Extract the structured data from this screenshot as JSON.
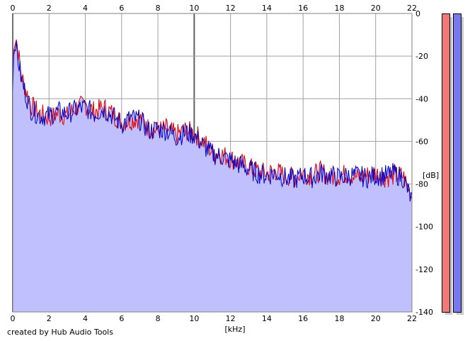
{
  "footer": {
    "credit": "created by Hub Audio Tools"
  },
  "meters": {
    "left_color": "#f07878",
    "right_color": "#7878f0"
  },
  "chart_data": {
    "type": "line",
    "title": "",
    "xlabel": "[kHz]",
    "ylabel": "[dB]",
    "xlim": [
      0,
      22
    ],
    "ylim": [
      -140,
      0
    ],
    "x_ticks": [
      "0",
      "2",
      "4",
      "6",
      "8",
      "10",
      "12",
      "14",
      "16",
      "18",
      "20",
      "22"
    ],
    "y_ticks": [
      "0",
      "-20",
      "-40",
      "-60",
      "-80",
      "-100",
      "-120",
      "-140"
    ],
    "grid": true,
    "fill_color": "#c0c0ff",
    "series": [
      {
        "color": "#e00000",
        "x": [
          0,
          0.05,
          0.1,
          0.2,
          0.3,
          0.5,
          0.8,
          1,
          1.5,
          2,
          2.5,
          3,
          3.5,
          4,
          4.5,
          5,
          5.5,
          6,
          6.5,
          7,
          7.5,
          8,
          8.5,
          9,
          9.5,
          10,
          10.5,
          11,
          11.5,
          12,
          12.5,
          13,
          13.5,
          14,
          14.5,
          15,
          15.5,
          16,
          16.5,
          17,
          17.5,
          18,
          18.5,
          19,
          19.5,
          20,
          20.5,
          21,
          21.5,
          22
        ],
        "y": [
          -32,
          -18,
          -14,
          -12,
          -18,
          -30,
          -38,
          -43,
          -47,
          -49,
          -47,
          -48,
          -44,
          -43,
          -46,
          -44,
          -47,
          -51,
          -50,
          -49,
          -54,
          -55,
          -54,
          -57,
          -55,
          -56,
          -60,
          -65,
          -66,
          -68,
          -70,
          -72,
          -74,
          -75,
          -74,
          -76,
          -77,
          -75,
          -76,
          -74,
          -77,
          -76,
          -75,
          -77,
          -76,
          -75,
          -77,
          -76,
          -76,
          -86
        ]
      },
      {
        "color": "#0000cc",
        "x": [
          0,
          0.05,
          0.1,
          0.2,
          0.3,
          0.5,
          0.8,
          1,
          1.5,
          2,
          2.5,
          3,
          3.5,
          4,
          4.5,
          5,
          5.5,
          6,
          6.5,
          7,
          7.5,
          8,
          8.5,
          9,
          9.5,
          10,
          10.5,
          11,
          11.5,
          12,
          12.5,
          13,
          13.5,
          14,
          14.5,
          15,
          15.5,
          16,
          16.5,
          17,
          17.5,
          18,
          18.5,
          19,
          19.5,
          20,
          20.5,
          21,
          21.5,
          22
        ],
        "y": [
          -35,
          -20,
          -16,
          -15,
          -22,
          -32,
          -40,
          -45,
          -48,
          -48,
          -46,
          -47,
          -45,
          -44,
          -47,
          -45,
          -48,
          -52,
          -49,
          -50,
          -55,
          -54,
          -55,
          -58,
          -56,
          -57,
          -62,
          -66,
          -67,
          -69,
          -71,
          -73,
          -75,
          -76,
          -75,
          -77,
          -78,
          -76,
          -77,
          -75,
          -76,
          -77,
          -76,
          -76,
          -77,
          -76,
          -76,
          -75,
          -77,
          -88
        ]
      }
    ]
  }
}
